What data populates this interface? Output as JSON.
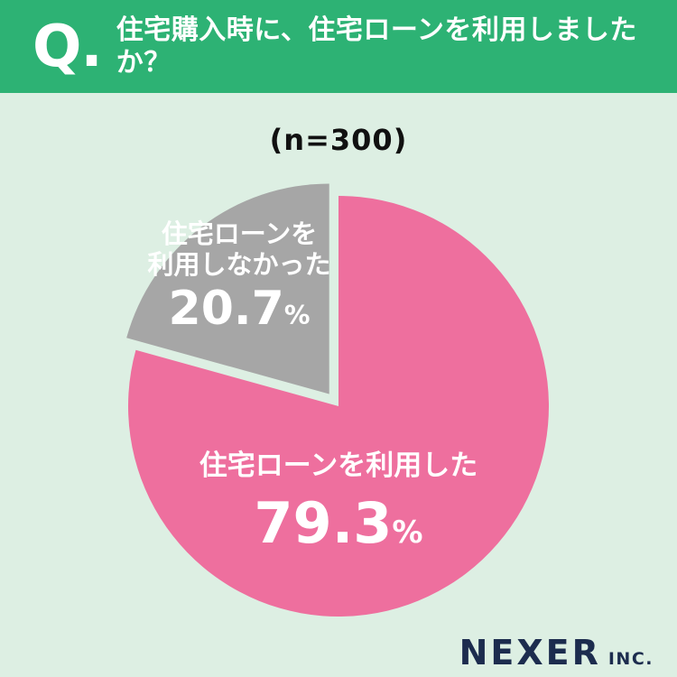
{
  "header": {
    "q_label": "Q.",
    "title": "住宅購入時に、住宅ローンを利用しましたか？",
    "bg_color": "#2db274",
    "text_color": "#ffffff"
  },
  "chart_data": {
    "type": "pie",
    "title": "住宅購入時に、住宅ローンを利用しましたか？",
    "sample_label": "(n=300)",
    "n": 300,
    "unit": "%",
    "start_angle": "top",
    "direction": "clockwise",
    "background_color": "#ddefe3",
    "slices": [
      {
        "label": "住宅ローンを利用した",
        "label_lines": [
          "住宅ローンを利用した"
        ],
        "value": 79.3,
        "color": "#ee6f9e",
        "exploded": false,
        "text_color": "#ffffff"
      },
      {
        "label": "住宅ローンを利用しなかった",
        "label_lines": [
          "住宅ローンを",
          "利用しなかった"
        ],
        "value": 20.7,
        "color": "#a6a6a6",
        "exploded": true,
        "text_color": "#ffffff"
      }
    ]
  },
  "footer": {
    "brand": "NEXER",
    "brand_suffix": "INC.",
    "color": "#1c2c4e"
  }
}
